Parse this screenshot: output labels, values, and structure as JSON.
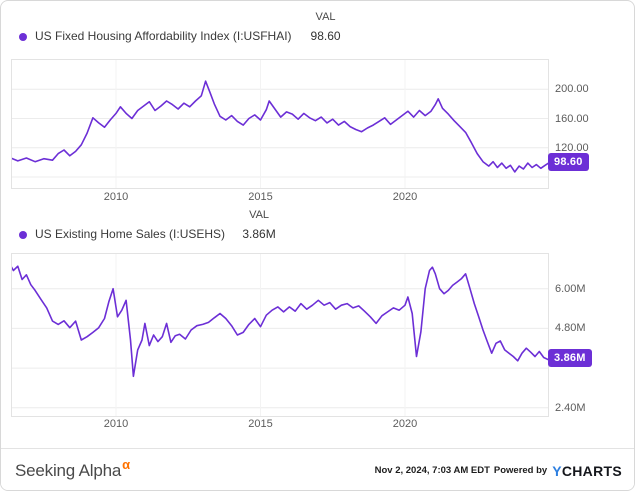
{
  "accent_colors": {
    "series_purple": "#6c2fd6",
    "alpha_orange": "#ff7200",
    "ycharts_blue": "#2d7fe0"
  },
  "chart_data": [
    {
      "type": "line",
      "title": "US Fixed Housing Affordability Index (I:USFHAI)",
      "val_header": "VAL",
      "val_display": "98.60",
      "badge_label": "98.60",
      "badge_value": 98.6,
      "line_color": "#6c2fd6",
      "x_range": [
        2006.4,
        2024.95
      ],
      "y_range": [
        65,
        240
      ],
      "grid": true,
      "legend_position": "top-left",
      "x_ticks": [
        {
          "v": 2010,
          "label": "2010"
        },
        {
          "v": 2015,
          "label": "2015"
        },
        {
          "v": 2020,
          "label": "2020"
        }
      ],
      "y_gridlines": [
        80,
        120,
        160,
        200
      ],
      "y_axis_labels": [
        {
          "v": 200,
          "label": "200.00"
        },
        {
          "v": 160,
          "label": "160.00"
        },
        {
          "v": 120,
          "label": "120.00"
        }
      ],
      "x": [
        2006.3,
        2006.6,
        2006.9,
        2007.2,
        2007.5,
        2007.8,
        2008.0,
        2008.2,
        2008.4,
        2008.6,
        2008.8,
        2009.0,
        2009.2,
        2009.4,
        2009.6,
        2009.8,
        2010.0,
        2010.15,
        2010.35,
        2010.55,
        2010.75,
        2010.95,
        2011.15,
        2011.35,
        2011.55,
        2011.75,
        2011.95,
        2012.15,
        2012.35,
        2012.55,
        2012.75,
        2012.95,
        2013.1,
        2013.25,
        2013.4,
        2013.6,
        2013.8,
        2014.0,
        2014.2,
        2014.4,
        2014.6,
        2014.8,
        2015.0,
        2015.2,
        2015.3,
        2015.5,
        2015.7,
        2015.9,
        2016.1,
        2016.3,
        2016.5,
        2016.7,
        2016.9,
        2017.1,
        2017.3,
        2017.5,
        2017.7,
        2017.9,
        2018.1,
        2018.3,
        2018.5,
        2018.7,
        2018.9,
        2019.1,
        2019.3,
        2019.5,
        2019.7,
        2019.9,
        2020.1,
        2020.3,
        2020.5,
        2020.7,
        2020.9,
        2021.05,
        2021.15,
        2021.3,
        2021.5,
        2021.7,
        2021.9,
        2022.1,
        2022.3,
        2022.5,
        2022.7,
        2022.9,
        2023.05,
        2023.2,
        2023.35,
        2023.5,
        2023.65,
        2023.8,
        2023.95,
        2024.1,
        2024.25,
        2024.4,
        2024.55,
        2024.7,
        2024.85,
        2024.95
      ],
      "y": [
        107,
        102,
        106,
        101,
        105,
        103,
        112,
        117,
        109,
        115,
        124,
        140,
        161,
        154,
        148,
        158,
        167,
        176,
        167,
        160,
        171,
        177,
        183,
        171,
        177,
        184,
        179,
        173,
        181,
        176,
        184,
        191,
        211,
        196,
        180,
        163,
        158,
        164,
        156,
        151,
        160,
        165,
        158,
        172,
        184,
        173,
        162,
        169,
        166,
        159,
        167,
        161,
        157,
        162,
        154,
        159,
        151,
        156,
        149,
        145,
        142,
        147,
        151,
        156,
        161,
        152,
        158,
        164,
        170,
        162,
        171,
        164,
        170,
        179,
        187,
        174,
        166,
        157,
        149,
        141,
        127,
        112,
        101,
        95,
        101,
        93,
        99,
        92,
        96,
        87,
        95,
        91,
        99,
        93,
        97,
        92,
        96,
        98.6
      ]
    },
    {
      "type": "line",
      "title": "US Existing Home Sales (I:USEHS)",
      "val_header": "VAL",
      "val_display": "3.86M",
      "badge_label": "3.86M",
      "badge_value": 3.86,
      "line_color": "#6c2fd6",
      "x_range": [
        2006.4,
        2024.95
      ],
      "y_range": [
        2.15,
        7.05
      ],
      "grid": true,
      "legend_position": "top-left",
      "x_ticks": [
        {
          "v": 2010,
          "label": "2010"
        },
        {
          "v": 2015,
          "label": "2015"
        },
        {
          "v": 2020,
          "label": "2020"
        }
      ],
      "y_gridlines": [
        2.4,
        3.6,
        4.8,
        6.0
      ],
      "y_axis_labels": [
        {
          "v": 6.0,
          "label": "6.00M"
        },
        {
          "v": 4.8,
          "label": "4.80M"
        },
        {
          "v": 2.4,
          "label": "2.40M"
        }
      ],
      "x": [
        2006.3,
        2006.45,
        2006.6,
        2006.75,
        2006.9,
        2007.05,
        2007.2,
        2007.4,
        2007.6,
        2007.8,
        2008.0,
        2008.2,
        2008.4,
        2008.6,
        2008.8,
        2009.0,
        2009.2,
        2009.4,
        2009.6,
        2009.75,
        2009.9,
        2010.05,
        2010.2,
        2010.35,
        2010.5,
        2010.6,
        2010.75,
        2010.9,
        2011.0,
        2011.15,
        2011.3,
        2011.45,
        2011.6,
        2011.75,
        2011.9,
        2012.05,
        2012.2,
        2012.4,
        2012.6,
        2012.8,
        2013.0,
        2013.2,
        2013.4,
        2013.6,
        2013.8,
        2014.0,
        2014.2,
        2014.4,
        2014.6,
        2014.8,
        2015.0,
        2015.2,
        2015.4,
        2015.6,
        2015.8,
        2016.0,
        2016.2,
        2016.4,
        2016.6,
        2016.8,
        2017.0,
        2017.2,
        2017.4,
        2017.6,
        2017.8,
        2018.0,
        2018.2,
        2018.4,
        2018.6,
        2018.8,
        2019.0,
        2019.2,
        2019.4,
        2019.6,
        2019.8,
        2020.0,
        2020.1,
        2020.25,
        2020.4,
        2020.55,
        2020.7,
        2020.85,
        2020.95,
        2021.05,
        2021.2,
        2021.35,
        2021.5,
        2021.65,
        2021.8,
        2021.95,
        2022.1,
        2022.25,
        2022.4,
        2022.55,
        2022.7,
        2022.85,
        2023.0,
        2023.15,
        2023.3,
        2023.45,
        2023.6,
        2023.75,
        2023.9,
        2024.05,
        2024.2,
        2024.35,
        2024.5,
        2024.65,
        2024.8,
        2024.95
      ],
      "y": [
        6.78,
        6.55,
        6.68,
        6.28,
        6.42,
        6.12,
        5.95,
        5.68,
        5.42,
        5.02,
        4.92,
        5.03,
        4.82,
        5.02,
        4.45,
        4.55,
        4.68,
        4.82,
        5.1,
        5.6,
        6.0,
        5.15,
        5.35,
        5.65,
        4.45,
        3.35,
        4.15,
        4.45,
        4.95,
        4.28,
        4.6,
        4.4,
        4.55,
        4.95,
        4.38,
        4.58,
        4.62,
        4.48,
        4.75,
        4.88,
        4.92,
        4.98,
        5.12,
        5.25,
        5.1,
        4.88,
        4.6,
        4.68,
        4.92,
        5.1,
        4.85,
        5.2,
        5.35,
        5.45,
        5.3,
        5.45,
        5.32,
        5.55,
        5.38,
        5.5,
        5.65,
        5.5,
        5.58,
        5.38,
        5.5,
        5.55,
        5.42,
        5.48,
        5.32,
        5.15,
        4.95,
        5.18,
        5.3,
        5.42,
        5.35,
        5.5,
        5.75,
        5.25,
        3.95,
        4.7,
        6.0,
        6.55,
        6.65,
        6.45,
        6.0,
        5.85,
        5.95,
        6.1,
        6.2,
        6.3,
        6.45,
        6.0,
        5.55,
        5.15,
        4.75,
        4.4,
        4.05,
        4.35,
        4.42,
        4.15,
        4.05,
        3.95,
        3.82,
        4.05,
        4.2,
        4.08,
        3.95,
        4.1,
        3.92,
        3.86
      ]
    }
  ],
  "footer": {
    "brand": "Seeking Alpha",
    "alpha_symbol": "α",
    "timestamp": "Nov 2, 2024, 7:03 AM EDT",
    "powered_by": "Powered by",
    "ycharts_y": "Y",
    "ycharts_charts": "CHARTS"
  }
}
